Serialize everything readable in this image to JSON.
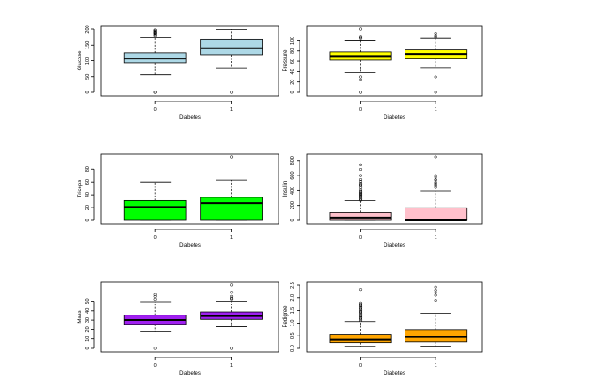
{
  "chart_data": [
    {
      "type": "box",
      "xlabel": "Diabetes",
      "ylabel": "Glucose",
      "categories": [
        "0",
        "1"
      ],
      "ylim": [
        0,
        200
      ],
      "yticks": [
        0,
        50,
        100,
        150,
        200
      ],
      "fill": "#add8e6",
      "boxes": [
        {
          "min": 56,
          "q1": 93,
          "median": 107,
          "q3": 125,
          "max": 172,
          "outliers": [
            0,
            0,
            180,
            183,
            186,
            188,
            189,
            191,
            193,
            196,
            197
          ]
        },
        {
          "min": 78,
          "q1": 119,
          "median": 140,
          "q3": 167,
          "max": 199,
          "outliers": [
            0
          ]
        }
      ]
    },
    {
      "type": "box",
      "xlabel": "Diabetes",
      "ylabel": "Pressure",
      "categories": [
        "0",
        "1"
      ],
      "ylim": [
        0,
        122
      ],
      "yticks": [
        0,
        20,
        40,
        60,
        80,
        100
      ],
      "fill": "#ffff00",
      "boxes": [
        {
          "min": 38,
          "q1": 62,
          "median": 70,
          "q3": 78,
          "max": 100,
          "outliers": [
            0,
            24,
            30,
            104,
            106,
            108,
            122
          ]
        },
        {
          "min": 48,
          "q1": 66,
          "median": 74,
          "q3": 82,
          "max": 104,
          "outliers": [
            0,
            30,
            106,
            108,
            110,
            114
          ]
        }
      ]
    },
    {
      "type": "box",
      "xlabel": "Diabetes",
      "ylabel": "Triceps",
      "categories": [
        "0",
        "1"
      ],
      "ylim": [
        0,
        99
      ],
      "yticks": [
        0,
        20,
        40,
        60,
        80,
        100
      ],
      "fill": "#00ff00",
      "boxes": [
        {
          "min": 0,
          "q1": 0,
          "median": 21,
          "q3": 31,
          "max": 60,
          "outliers": []
        },
        {
          "min": 0,
          "q1": 0,
          "median": 27,
          "q3": 36,
          "max": 63,
          "outliers": [
            99
          ]
        }
      ]
    },
    {
      "type": "box",
      "xlabel": "Diabetes",
      "ylabel": "Insulin",
      "categories": [
        "0",
        "1"
      ],
      "ylim": [
        0,
        846
      ],
      "yticks": [
        0,
        200,
        400,
        600,
        800
      ],
      "fill": "#ffc0cb",
      "boxes": [
        {
          "min": 0,
          "q1": 0,
          "median": 39,
          "q3": 105,
          "max": 265,
          "outliers": [
            270,
            285,
            300,
            310,
            325,
            335,
            350,
            360,
            375,
            390,
            410,
            440,
            465,
            480,
            495,
            520,
            545,
            600,
            680,
            744
          ]
        },
        {
          "min": 0,
          "q1": 0,
          "median": 0,
          "q3": 168,
          "max": 392,
          "outliers": [
            440,
            465,
            480,
            495,
            510,
            540,
            545,
            579,
            600,
            846
          ]
        }
      ]
    },
    {
      "type": "box",
      "xlabel": "Diabetes",
      "ylabel": "Mass",
      "categories": [
        "0",
        "1"
      ],
      "ylim": [
        0,
        67
      ],
      "yticks": [
        0,
        10,
        20,
        30,
        40,
        50
      ],
      "fill": "#a020f0",
      "boxes": [
        {
          "min": 18,
          "q1": 25.4,
          "median": 30.1,
          "q3": 35.3,
          "max": 49.5,
          "outliers": [
            0,
            52,
            55,
            57
          ]
        },
        {
          "min": 22.9,
          "q1": 30.8,
          "median": 34.3,
          "q3": 38.8,
          "max": 50,
          "outliers": [
            0,
            52.3,
            53.2,
            55,
            59.4,
            67.1
          ]
        }
      ]
    },
    {
      "type": "box",
      "xlabel": "Diabetes",
      "ylabel": "Pedigree",
      "categories": [
        "0",
        "1"
      ],
      "ylim": [
        0,
        2.5
      ],
      "yticks": [
        0.0,
        0.5,
        1.0,
        1.5,
        2.0,
        2.5
      ],
      "fill": "#ffa500",
      "boxes": [
        {
          "min": 0.08,
          "q1": 0.23,
          "median": 0.34,
          "q3": 0.56,
          "max": 1.06,
          "outliers": [
            1.1,
            1.15,
            1.2,
            1.25,
            1.3,
            1.35,
            1.4,
            1.45,
            1.5,
            1.55,
            1.6,
            1.65,
            1.7,
            1.75,
            1.8,
            2.33
          ]
        },
        {
          "min": 0.09,
          "q1": 0.26,
          "median": 0.45,
          "q3": 0.73,
          "max": 1.39,
          "outliers": [
            1.9,
            2.1,
            2.2,
            2.3,
            2.42
          ]
        }
      ]
    }
  ]
}
